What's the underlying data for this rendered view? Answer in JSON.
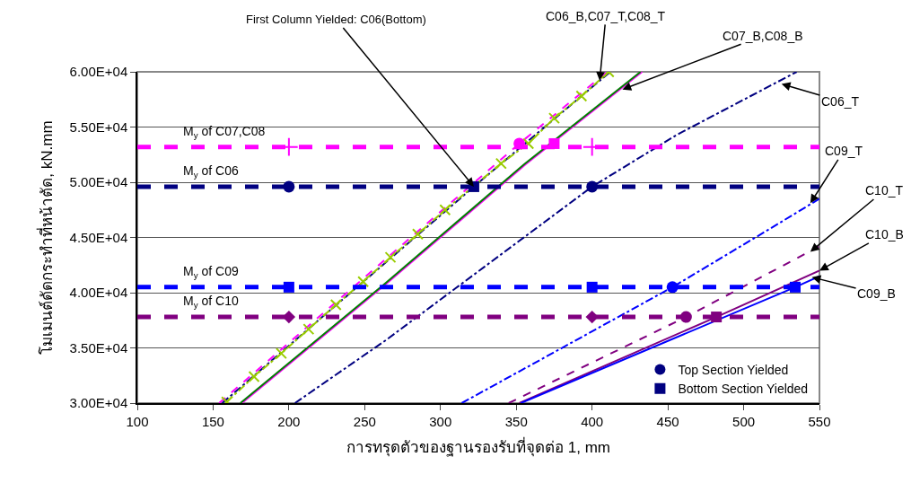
{
  "chart_data": {
    "type": "line",
    "xlabel": "การทรุดตัวของฐานรองรับที่จุดต่อ 1, mm",
    "ylabel": "โมเมนต์ดัดกระทำที่หน้าตัด, kN.mm",
    "xlim": [
      100,
      550
    ],
    "xticks": [
      100,
      150,
      200,
      250,
      300,
      350,
      400,
      450,
      500,
      550
    ],
    "ylim": [
      30000,
      60000
    ],
    "yticks": [
      {
        "value": 30000,
        "label": "3.00E+04"
      },
      {
        "value": 35000,
        "label": "3.50E+04"
      },
      {
        "value": 40000,
        "label": "4.00E+04"
      },
      {
        "value": 45000,
        "label": "4.50E+04"
      },
      {
        "value": 50000,
        "label": "5.00E+04"
      },
      {
        "value": 55000,
        "label": "5.50E+04"
      },
      {
        "value": 60000,
        "label": "6.00E+04"
      }
    ],
    "grid": "y",
    "legend": "bottom right",
    "ref_lines": [
      {
        "axis": "y",
        "value": 53200,
        "label": "M$_{y}$ of C07,C08",
        "color": "#ff00ff",
        "line_style": "dashed"
      },
      {
        "axis": "y",
        "value": 49600,
        "label": "M$_{y}$ of C06",
        "color": "#000080",
        "line_style": "dashed"
      },
      {
        "axis": "y",
        "value": 40500,
        "label": "M$_{y}$ of C09",
        "color": "#0000ff",
        "line_style": "dashed"
      },
      {
        "axis": "y",
        "value": 37800,
        "label": "M$_{y}$ of C10",
        "color": "#800080",
        "line_style": "dashed"
      }
    ],
    "annotations": [
      {
        "text": "First Column Yielded: C06(Bottom)",
        "x": 322,
        "y": 49600
      },
      {
        "text": "C06_B,C07_T,C08_T",
        "x": 405,
        "y": 59200
      },
      {
        "text": "C07_B,C08_B",
        "x": 420,
        "y": 58400
      },
      {
        "text": "C06_T",
        "x": 525,
        "y": 58900
      },
      {
        "text": "C09_T",
        "x": 544,
        "y": 48100
      },
      {
        "text": "C10_T",
        "x": 544,
        "y": 43700
      },
      {
        "text": "C10_B",
        "x": 550,
        "y": 42000
      },
      {
        "text": "C09_B",
        "x": 545,
        "y": 41400
      }
    ],
    "series": [
      {
        "type": "line",
        "color": "#ff00ff",
        "line_style": "dashed",
        "marker": "none",
        "x": [
          154,
          352,
          410
        ],
        "values": [
          30000,
          53500,
          60000
        ]
      },
      {
        "type": "line",
        "color": "#000080",
        "line_style": "dashdot",
        "marker": "none",
        "x": [
          156,
          322,
          412
        ],
        "values": [
          30000,
          49600,
          60000
        ]
      },
      {
        "type": "line",
        "color": "#99cc00",
        "line_style": "dashdot",
        "marker": "x",
        "x": [
          159,
          177,
          195,
          213,
          231,
          249,
          267,
          285,
          303,
          322,
          340,
          358,
          375,
          393,
          411
        ],
        "values": [
          30100,
          32400,
          34500,
          36700,
          38900,
          41000,
          43200,
          45300,
          47500,
          null,
          51700,
          53500,
          55800,
          57800,
          60000
        ]
      },
      {
        "type": "line",
        "color": "#ff00ff",
        "line_style": "solid",
        "marker": "none",
        "x": [
          169,
          265,
          356,
          433
        ],
        "values": [
          30000,
          40900,
          51600,
          60000
        ]
      },
      {
        "type": "line",
        "color": "#008000",
        "line_style": "solid",
        "marker": "none",
        "x": [
          168,
          264,
          355,
          432
        ],
        "values": [
          30000,
          40900,
          51600,
          60000
        ]
      },
      {
        "type": "line",
        "color": "#000080",
        "line_style": "dashdot",
        "marker": "none",
        "x": [
          204,
          264,
          400,
          456,
          535
        ],
        "values": [
          30000,
          35700,
          49600,
          54300,
          60000
        ]
      },
      {
        "type": "line",
        "color": "#0000ff",
        "line_style": "dashdot",
        "marker": "none",
        "x": [
          314,
          453,
          509,
          550
        ],
        "values": [
          30000,
          40500,
          45100,
          48500
        ]
      },
      {
        "type": "line",
        "color": "#800080",
        "line_style": "dashed",
        "marker": "none",
        "x": [
          345,
          462,
          550
        ],
        "values": [
          30000,
          37800,
          44200
        ]
      },
      {
        "type": "line",
        "color": "#800080",
        "line_style": "solid",
        "marker": "none",
        "x": [
          352,
          482,
          550
        ],
        "values": [
          30000,
          37800,
          42000
        ]
      },
      {
        "type": "line",
        "color": "#0000ff",
        "line_style": "solid",
        "marker": "none",
        "x": [
          353,
          534,
          550
        ],
        "values": [
          30000,
          40500,
          41500
        ]
      },
      {
        "type": "scatter",
        "color": "#ff00ff",
        "marker": "cross",
        "x": [
          200,
          400
        ],
        "values": [
          53200,
          53200
        ]
      },
      {
        "type": "scatter",
        "color": "#0000ff",
        "marker": "square",
        "x": [
          200,
          400
        ],
        "values": [
          40500,
          40500
        ]
      },
      {
        "type": "scatter",
        "color": "#800080",
        "marker": "diamond",
        "x": [
          200,
          400
        ],
        "values": [
          37800,
          37800
        ]
      },
      {
        "type": "scatter",
        "color": "#000080",
        "marker": "circle",
        "x": [
          200
        ],
        "values": [
          49600
        ]
      },
      {
        "type": "scatter",
        "color": "#ff00ff",
        "marker": "circle",
        "x": [
          352
        ],
        "values": [
          53500
        ]
      },
      {
        "type": "scatter",
        "color": "#ff00ff",
        "marker": "square",
        "x": [
          375
        ],
        "values": [
          53500
        ]
      },
      {
        "type": "scatter",
        "color": "#0000ff",
        "marker": "circle",
        "x": [
          453
        ],
        "values": [
          40500
        ]
      },
      {
        "type": "scatter",
        "color": "#0000ff",
        "marker": "square",
        "x": [
          534
        ],
        "values": [
          40500
        ]
      },
      {
        "type": "scatter",
        "color": "#800080",
        "marker": "circle",
        "x": [
          462
        ],
        "values": [
          37800
        ]
      },
      {
        "type": "scatter",
        "color": "#800080",
        "marker": "square",
        "x": [
          482
        ],
        "values": [
          37800
        ]
      },
      {
        "type": "scatter",
        "name": "Top Section Yielded",
        "color": "#000080",
        "marker": "circle",
        "x": [
          400
        ],
        "values": [
          49600
        ]
      },
      {
        "type": "scatter",
        "name": "Bottom Section Yielded",
        "color": "#000080",
        "marker": "square",
        "x": [
          322
        ],
        "values": [
          49600
        ]
      }
    ]
  }
}
